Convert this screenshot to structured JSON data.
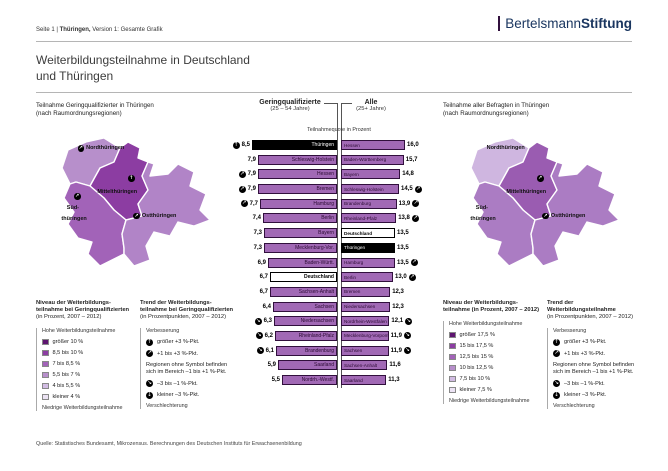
{
  "header": {
    "page_info_prefix": "Seite 1  |  ",
    "page_info_bold": "Thüringen,",
    "page_info_rest": " Version 1: Gesamte Grafik",
    "logo_regular": "Bertelsmann",
    "logo_bold": "Stiftung"
  },
  "title": {
    "line1": "Weiterbildungsteilnahme in Deutschland",
    "line2": "und Thüringen"
  },
  "footer": {
    "source": "Quelle: Statistisches Bundesamt, Mikrozensus. Berechnungen des Deutschen Instituts für Erwachsenenbildung"
  },
  "colors": {
    "bar_fill": "#a169b5",
    "bar_border": "#31103d",
    "highlight": "#000000",
    "germany_fill": "#ffffff",
    "logo_navy": "#1a3660"
  },
  "left_map": {
    "title1": "Teilnahme Geringqualifizierter in Thüringen",
    "title2": "(nach Raumordnungsregionen)",
    "regions": [
      {
        "id": "nord",
        "label1": "Nordthüringen",
        "label2": "",
        "fill": "#b78fcb",
        "trend": "up-right"
      },
      {
        "id": "mittel",
        "label1": "Mittelthüringen",
        "label2": "",
        "fill": "#8c3da2",
        "trend": "up"
      },
      {
        "id": "sued",
        "label1": "Süd-",
        "label2": "thüringen",
        "fill": "#a263b8",
        "trend": "up-right"
      },
      {
        "id": "ost",
        "label1": "Ostthüringen",
        "label2": "",
        "fill": "#b184c7",
        "trend": "up-right"
      }
    ]
  },
  "right_map": {
    "title1": "Teilnahme aller Befragten in Thüringen",
    "title2": "(nach Raumordnungsregionen)",
    "regions": [
      {
        "id": "nord",
        "label1": "Nordthüringen",
        "label2": "",
        "fill": "#cfb6e0",
        "trend": null
      },
      {
        "id": "mittel",
        "label1": "Mittelthüringen",
        "label2": "",
        "fill": "#9a5cb1",
        "trend": "up-right"
      },
      {
        "id": "sued",
        "label1": "Süd-",
        "label2": "thüringen",
        "fill": "#ab7cc3",
        "trend": null
      },
      {
        "id": "ost",
        "label1": "Ostthüringen",
        "label2": "",
        "fill": "#ab7cc3",
        "trend": "up-right"
      }
    ]
  },
  "chart_data": {
    "type": "bar",
    "axis_note": "Teilnahmequote in Prozent",
    "left_series": {
      "header": "Geringqualifizierte",
      "subheader": "(25 – 54 Jahre)",
      "rows": [
        {
          "label": "Thüringen",
          "display": "8,5",
          "value": 8.5,
          "trend": "up",
          "style": "highlight"
        },
        {
          "label": "Schleswig-Holstein",
          "display": "7,9",
          "value": 7.9,
          "trend": null,
          "style": "normal"
        },
        {
          "label": "Hessen",
          "display": "7,9",
          "value": 7.9,
          "trend": "up-right",
          "style": "normal"
        },
        {
          "label": "Bremen",
          "display": "7,9",
          "value": 7.9,
          "trend": "up-right",
          "style": "normal"
        },
        {
          "label": "Hamburg",
          "display": "7,7",
          "value": 7.7,
          "trend": "up-right",
          "style": "normal"
        },
        {
          "label": "Berlin",
          "display": "7,4",
          "value": 7.4,
          "trend": null,
          "style": "normal"
        },
        {
          "label": "Bayern",
          "display": "7,3",
          "value": 7.3,
          "trend": null,
          "style": "normal"
        },
        {
          "label": "Mecklenburg-Vor.",
          "display": "7,3",
          "value": 7.3,
          "trend": null,
          "style": "normal"
        },
        {
          "label": "Baden-Württ.",
          "display": "6,9",
          "value": 6.9,
          "trend": null,
          "style": "normal"
        },
        {
          "label": "Deutschland",
          "display": "6,7",
          "value": 6.7,
          "trend": null,
          "style": "germany"
        },
        {
          "label": "Sachsen-Anhalt",
          "display": "6,7",
          "value": 6.7,
          "trend": null,
          "style": "normal"
        },
        {
          "label": "Sachsen",
          "display": "6,4",
          "value": 6.4,
          "trend": null,
          "style": "normal"
        },
        {
          "label": "Niedersachsen",
          "display": "6,3",
          "value": 6.3,
          "trend": "down-right",
          "style": "normal"
        },
        {
          "label": "Rheinland-Pfalz",
          "display": "6,2",
          "value": 6.2,
          "trend": "down-right",
          "style": "normal"
        },
        {
          "label": "Brandenburg",
          "display": "6,1",
          "value": 6.1,
          "trend": "down-right",
          "style": "normal"
        },
        {
          "label": "Saarland",
          "display": "5,9",
          "value": 5.9,
          "trend": null,
          "style": "normal"
        },
        {
          "label": "Nordrh.-Westf.",
          "display": "5,5",
          "value": 5.5,
          "trend": null,
          "style": "normal"
        }
      ]
    },
    "right_series": {
      "header": "Alle",
      "subheader": "(25+ Jahre)",
      "rows": [
        {
          "label": "Hessen",
          "display": "16,0",
          "value": 16.0,
          "trend": null,
          "style": "normal"
        },
        {
          "label": "Baden-Württemberg",
          "display": "15,7",
          "value": 15.7,
          "trend": null,
          "style": "normal"
        },
        {
          "label": "Bayern",
          "display": "14,8",
          "value": 14.8,
          "trend": null,
          "style": "normal"
        },
        {
          "label": "Schleswig-Holstein",
          "display": "14,5",
          "value": 14.5,
          "trend": "up-right",
          "style": "normal"
        },
        {
          "label": "Brandenburg",
          "display": "13,9",
          "value": 13.9,
          "trend": "up-right",
          "style": "normal"
        },
        {
          "label": "Rheinland-Pfalz",
          "display": "13,8",
          "value": 13.8,
          "trend": "up-right",
          "style": "normal"
        },
        {
          "label": "Deutschland",
          "display": "13,5",
          "value": 13.5,
          "trend": null,
          "style": "germany"
        },
        {
          "label": "Thüringen",
          "display": "13,5",
          "value": 13.5,
          "trend": null,
          "style": "highlight"
        },
        {
          "label": "Hamburg",
          "display": "13,5",
          "value": 13.5,
          "trend": "up-right",
          "style": "normal"
        },
        {
          "label": "Berlin",
          "display": "13,0",
          "value": 13.0,
          "trend": "up-right",
          "style": "normal"
        },
        {
          "label": "Bremen",
          "display": "12,3",
          "value": 12.3,
          "trend": null,
          "style": "normal"
        },
        {
          "label": "Niedersachsen",
          "display": "12,3",
          "value": 12.3,
          "trend": null,
          "style": "normal"
        },
        {
          "label": "Nordrhein-Westfalen",
          "display": "12,1",
          "value": 12.1,
          "trend": "down-right",
          "style": "normal"
        },
        {
          "label": "Mecklenburg-Vorpommern",
          "display": "11,9",
          "value": 11.9,
          "trend": "down-right",
          "style": "normal"
        },
        {
          "label": "Sachsen",
          "display": "11,9",
          "value": 11.9,
          "trend": "down-right",
          "style": "normal"
        },
        {
          "label": "Sachsen-Anhalt",
          "display": "11,6",
          "value": 11.6,
          "trend": null,
          "style": "normal"
        },
        {
          "label": "Saarland",
          "display": "11,3",
          "value": 11.3,
          "trend": null,
          "style": "normal"
        }
      ]
    }
  },
  "legend_niveau_left": {
    "title1": "Niveau der Weiterbildungs-",
    "title2": "teilnahme bei Geringqualifizierten",
    "title3": "(in Prozent, 2007 – 2012)",
    "high_label": "Hohe Weiterbildungsteilnahme",
    "low_label": "Niedrige Weiterbildungsteilnahme",
    "classes": [
      {
        "label": "größer 10 %",
        "color": "#5e1470"
      },
      {
        "label": "8,5 bis 10 %",
        "color": "#8c3da2"
      },
      {
        "label": "7 bis 8,5 %",
        "color": "#a263b8"
      },
      {
        "label": "5,5 bis 7 %",
        "color": "#b78fcb"
      },
      {
        "label": "4 bis 5,5 %",
        "color": "#d2bce3"
      },
      {
        "label": "kleiner 4 %",
        "color": "#ece3f4"
      }
    ]
  },
  "legend_trend_left": {
    "title1": "Trend der Weiterbildungs-",
    "title2": "teilnahme bei Geringqualifizierten",
    "title3": "(in Prozentpunkten, 2007 – 2012)",
    "improve_label": "Verbesserung",
    "worsen_label": "Verschlechterung",
    "items_top": [
      {
        "icon": "up",
        "label": "größer +3 %-Pkt."
      },
      {
        "icon": "up-right",
        "label": "+1 bis +3 %-Pkt."
      }
    ],
    "note": "Regionen ohne Symbol befinden sich im Bereich –1 bis +1 %-Pkt.",
    "items_bottom": [
      {
        "icon": "down-right",
        "label": "–3 bis –1 %-Pkt."
      },
      {
        "icon": "down",
        "label": "kleiner –3 %-Pkt."
      }
    ]
  },
  "legend_niveau_right": {
    "title1": "Niveau der Weiterbildungs-",
    "title2": "teilnahme (in Prozent, 2007 – 2012)",
    "high_label": "Hohe Weiterbildungsteilnahme",
    "low_label": "Niedrige Weiterbildungsteilnahme",
    "classes": [
      {
        "label": "größer 17,5 %",
        "color": "#5e1470"
      },
      {
        "label": "15 bis 17,5 %",
        "color": "#8c3da2"
      },
      {
        "label": "12,5 bis 15 %",
        "color": "#a263b8"
      },
      {
        "label": "10 bis 12,5 %",
        "color": "#b78fcb"
      },
      {
        "label": "7,5 bis 10 %",
        "color": "#d2bce3"
      },
      {
        "label": "kleiner 7,5 %",
        "color": "#ece3f4"
      }
    ]
  },
  "legend_trend_right": {
    "title1": "Trend der Weiterbildungsteilnahme",
    "title2": "(in Prozentpunkten, 2007 – 2012)",
    "title3": "",
    "improve_label": "Verbesserung",
    "worsen_label": "Verschlechterung",
    "items_top": [
      {
        "icon": "up",
        "label": "größer +3 %-Pkt."
      },
      {
        "icon": "up-right",
        "label": "+1 bis +3 %-Pkt."
      }
    ],
    "note": "Regionen ohne Symbol befinden sich im Bereich –1 bis +1 %-Pkt.",
    "items_bottom": [
      {
        "icon": "down-right",
        "label": "–3 bis –1 %-Pkt."
      },
      {
        "icon": "down",
        "label": "kleiner –3 %-Pkt."
      }
    ]
  }
}
